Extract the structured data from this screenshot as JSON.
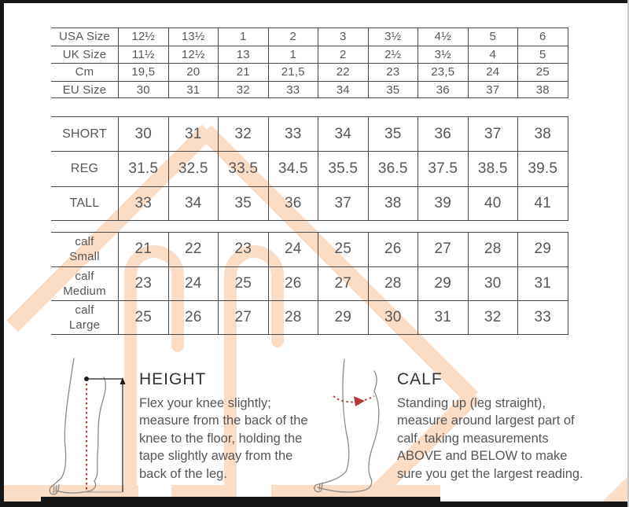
{
  "document": {
    "kind": "boot-size-guide"
  },
  "colors": {
    "accent_peach": "#fbdcc5",
    "line": "#47484a",
    "text": "#56575a",
    "marker_red": "#b5373a",
    "bar_black": "#161616"
  },
  "tables": {
    "size": {
      "rows": [
        {
          "label": "USA Size",
          "values": [
            "12½",
            "13½",
            "1",
            "2",
            "3",
            "3½",
            "4½",
            "5",
            "6"
          ]
        },
        {
          "label": "UK Size",
          "values": [
            "11½",
            "12½",
            "13",
            "1",
            "2",
            "2½",
            "3½",
            "4",
            "5"
          ]
        },
        {
          "label": "Cm",
          "values": [
            "19,5",
            "20",
            "21",
            "21,5",
            "22",
            "23",
            "23,5",
            "24",
            "25"
          ]
        },
        {
          "label": "EU Size",
          "values": [
            "30",
            "31",
            "32",
            "33",
            "34",
            "35",
            "36",
            "37",
            "38"
          ]
        }
      ]
    },
    "height": {
      "rows": [
        {
          "label": "SHORT",
          "values": [
            "30",
            "31",
            "32",
            "33",
            "34",
            "35",
            "36",
            "37",
            "38"
          ]
        },
        {
          "label": "REG",
          "values": [
            "31.5",
            "32.5",
            "33.5",
            "34.5",
            "35.5",
            "36.5",
            "37.5",
            "38.5",
            "39.5"
          ]
        },
        {
          "label": "TALL",
          "values": [
            "33",
            "34",
            "35",
            "36",
            "37",
            "38",
            "39",
            "40",
            "41"
          ]
        }
      ]
    },
    "calf": {
      "rows": [
        {
          "label": "calf\nSmall",
          "values": [
            "21",
            "22",
            "23",
            "24",
            "25",
            "26",
            "27",
            "28",
            "29"
          ]
        },
        {
          "label": "calf\nMedium",
          "values": [
            "23",
            "24",
            "25",
            "26",
            "27",
            "28",
            "29",
            "30",
            "31"
          ]
        },
        {
          "label": "calf\nLarge",
          "values": [
            "25",
            "26",
            "27",
            "28",
            "29",
            "30",
            "31",
            "32",
            "33"
          ]
        }
      ]
    }
  },
  "guides": {
    "height": {
      "title": "HEIGHT",
      "body": "Flex your knee slightly;\nmeasure from the back of the\nknee to the floor, holding the\ntape slightly away from the\nback of the leg."
    },
    "calf": {
      "title": "CALF",
      "body": "Standing up (leg straight),\nmeasure around largest part of\ncalf, taking measurements\nABOVE and BELOW to make\nsure you get the largest reading."
    }
  },
  "icons": {
    "height_figure": "leg-height-measure-illustration",
    "calf_figure": "leg-calf-measure-illustration",
    "logo_shape": "house-arches-watermark"
  }
}
